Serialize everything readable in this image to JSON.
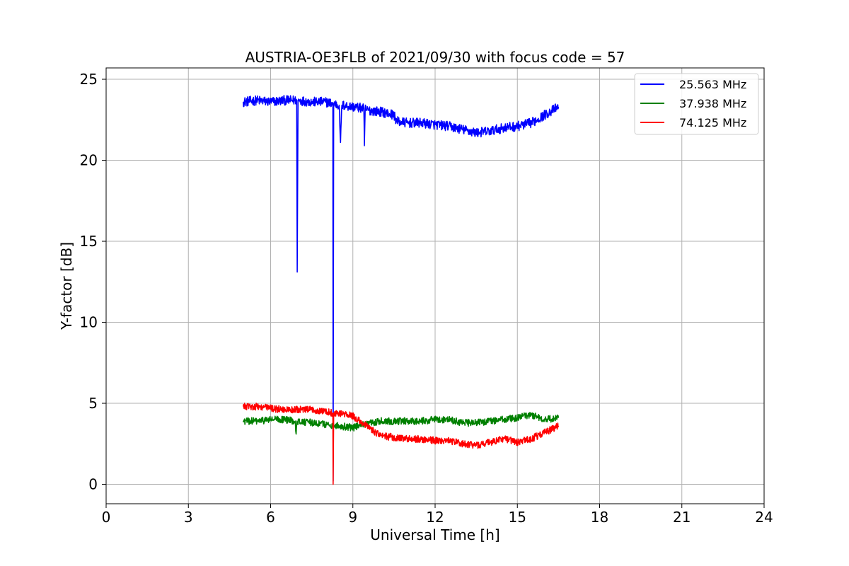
{
  "chart_data": {
    "type": "line",
    "title": "AUSTRIA-OE3FLB of 2021/09/30 with focus code = 57",
    "xlabel": "Universal Time [h]",
    "ylabel": "Y-factor [dB]",
    "xlim": [
      0,
      24
    ],
    "ylim": [
      -1.2,
      25.7
    ],
    "x_ticks": [
      0,
      3,
      6,
      9,
      12,
      15,
      18,
      21,
      24
    ],
    "y_ticks": [
      0,
      5,
      10,
      15,
      20,
      25
    ],
    "grid": true,
    "legend_position": "top-right",
    "series": [
      {
        "name": "25.563 MHz",
        "color": "#0000ff",
        "noise": 0.3,
        "x": [
          5.0,
          5.5,
          6.0,
          6.5,
          6.95,
          6.97,
          7.0,
          7.5,
          8.0,
          8.27,
          8.28,
          8.3,
          8.5,
          8.55,
          8.6,
          9.0,
          9.4,
          9.42,
          9.45,
          9.5,
          10.0,
          10.5,
          10.6,
          11.0,
          11.5,
          12.0,
          12.5,
          13.0,
          13.5,
          14.0,
          14.5,
          15.0,
          15.5,
          16.0,
          16.5
        ],
        "y": [
          23.6,
          23.7,
          23.6,
          23.7,
          23.7,
          13.1,
          23.7,
          23.6,
          23.6,
          23.5,
          0.2,
          23.5,
          23.4,
          21.1,
          23.4,
          23.3,
          23.2,
          20.9,
          23.2,
          23.1,
          23.0,
          22.8,
          22.4,
          22.3,
          22.3,
          22.2,
          22.1,
          21.9,
          21.7,
          21.8,
          22.0,
          22.1,
          22.3,
          22.8,
          23.3
        ]
      },
      {
        "name": "37.938 MHz",
        "color": "#008000",
        "noise": 0.22,
        "x": [
          5.0,
          5.5,
          6.0,
          6.5,
          6.9,
          6.93,
          6.96,
          7.5,
          8.0,
          8.5,
          9.0,
          9.5,
          10.0,
          10.5,
          11.0,
          11.5,
          12.0,
          12.5,
          13.0,
          13.5,
          14.0,
          14.5,
          15.0,
          15.5,
          16.0,
          16.5
        ],
        "y": [
          3.9,
          3.9,
          4.0,
          4.0,
          3.9,
          3.1,
          3.9,
          3.8,
          3.7,
          3.6,
          3.5,
          3.7,
          3.9,
          3.9,
          3.9,
          3.9,
          4.0,
          4.0,
          3.8,
          3.8,
          3.9,
          4.0,
          4.1,
          4.3,
          4.0,
          4.1
        ]
      },
      {
        "name": "74.125 MHz",
        "color": "#ff0000",
        "noise": 0.22,
        "x": [
          5.0,
          5.5,
          6.0,
          6.5,
          7.0,
          7.5,
          8.0,
          8.27,
          8.28,
          8.3,
          8.5,
          9.0,
          9.5,
          10.0,
          10.5,
          11.0,
          11.5,
          12.0,
          12.5,
          13.0,
          13.5,
          14.0,
          14.5,
          15.0,
          15.5,
          16.0,
          16.5
        ],
        "y": [
          4.8,
          4.8,
          4.7,
          4.6,
          4.6,
          4.6,
          4.5,
          4.4,
          0.0,
          4.4,
          4.4,
          4.2,
          3.6,
          3.0,
          2.9,
          2.8,
          2.8,
          2.7,
          2.7,
          2.5,
          2.4,
          2.6,
          2.8,
          2.6,
          2.8,
          3.2,
          3.6
        ]
      }
    ]
  }
}
